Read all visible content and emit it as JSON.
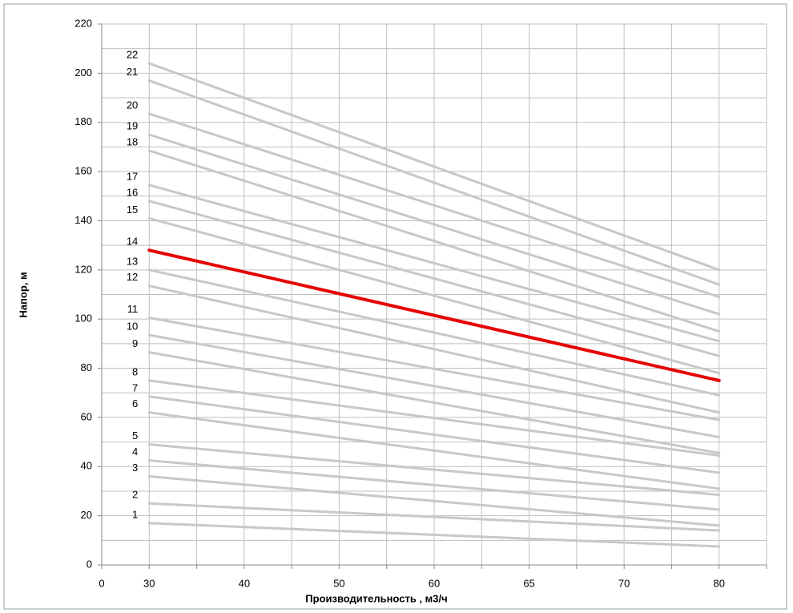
{
  "chart_data": {
    "type": "line",
    "x_label": "Производительность , м3/ч",
    "y_label": "Напор, м",
    "categories": [
      "0",
      "30",
      "40",
      "50",
      "60",
      "65",
      "70",
      "80"
    ],
    "ylim": [
      0,
      220
    ],
    "yticks": [
      0,
      20,
      40,
      60,
      80,
      100,
      120,
      140,
      160,
      180,
      200,
      220
    ],
    "grid": true,
    "series": [
      {
        "name": "1",
        "color": "#c8c8c8",
        "x": [
          "30",
          "80"
        ],
        "values": [
          17,
          7.5
        ]
      },
      {
        "name": "2",
        "color": "#c8c8c8",
        "x": [
          "30",
          "80"
        ],
        "values": [
          25,
          14
        ]
      },
      {
        "name": "3",
        "color": "#c8c8c8",
        "x": [
          "30",
          "80"
        ],
        "values": [
          36,
          16
        ]
      },
      {
        "name": "4",
        "color": "#c8c8c8",
        "x": [
          "30",
          "80"
        ],
        "values": [
          42.5,
          22.5
        ]
      },
      {
        "name": "5",
        "color": "#c8c8c8",
        "x": [
          "30",
          "80"
        ],
        "values": [
          49,
          28.5
        ]
      },
      {
        "name": "6",
        "color": "#c8c8c8",
        "x": [
          "30",
          "80"
        ],
        "values": [
          62,
          31
        ]
      },
      {
        "name": "7",
        "color": "#c8c8c8",
        "x": [
          "30",
          "80"
        ],
        "values": [
          68.5,
          37.5
        ]
      },
      {
        "name": "8",
        "color": "#c8c8c8",
        "x": [
          "30",
          "80"
        ],
        "values": [
          75,
          44.5
        ]
      },
      {
        "name": "9",
        "color": "#c8c8c8",
        "x": [
          "30",
          "80"
        ],
        "values": [
          86.5,
          45.5
        ]
      },
      {
        "name": "10",
        "color": "#c8c8c8",
        "x": [
          "30",
          "80"
        ],
        "values": [
          93.5,
          52
        ]
      },
      {
        "name": "11",
        "color": "#c8c8c8",
        "x": [
          "30",
          "80"
        ],
        "values": [
          100.5,
          59
        ]
      },
      {
        "name": "12",
        "color": "#c8c8c8",
        "x": [
          "30",
          "80"
        ],
        "values": [
          113.5,
          62
        ]
      },
      {
        "name": "13",
        "color": "#c8c8c8",
        "x": [
          "30",
          "80"
        ],
        "values": [
          120,
          69
        ]
      },
      {
        "name": "14",
        "color": "#e60000",
        "x": [
          "30",
          "80"
        ],
        "values": [
          128,
          75
        ]
      },
      {
        "name": "15",
        "color": "#c8c8c8",
        "x": [
          "30",
          "80"
        ],
        "values": [
          141,
          78
        ]
      },
      {
        "name": "16",
        "color": "#c8c8c8",
        "x": [
          "30",
          "80"
        ],
        "values": [
          148,
          85
        ]
      },
      {
        "name": "17",
        "color": "#c8c8c8",
        "x": [
          "30",
          "80"
        ],
        "values": [
          154.5,
          91
        ]
      },
      {
        "name": "18",
        "color": "#c8c8c8",
        "x": [
          "30",
          "80"
        ],
        "values": [
          168.5,
          95
        ]
      },
      {
        "name": "19",
        "color": "#c8c8c8",
        "x": [
          "30",
          "80"
        ],
        "values": [
          175,
          102
        ]
      },
      {
        "name": "20",
        "color": "#c8c8c8",
        "x": [
          "30",
          "80"
        ],
        "values": [
          183.5,
          109
        ]
      },
      {
        "name": "21",
        "color": "#c8c8c8",
        "x": [
          "30",
          "80"
        ],
        "values": [
          197,
          114
        ]
      },
      {
        "name": "22",
        "color": "#c8c8c8",
        "x": [
          "30",
          "80"
        ],
        "values": [
          204,
          120
        ]
      }
    ]
  }
}
